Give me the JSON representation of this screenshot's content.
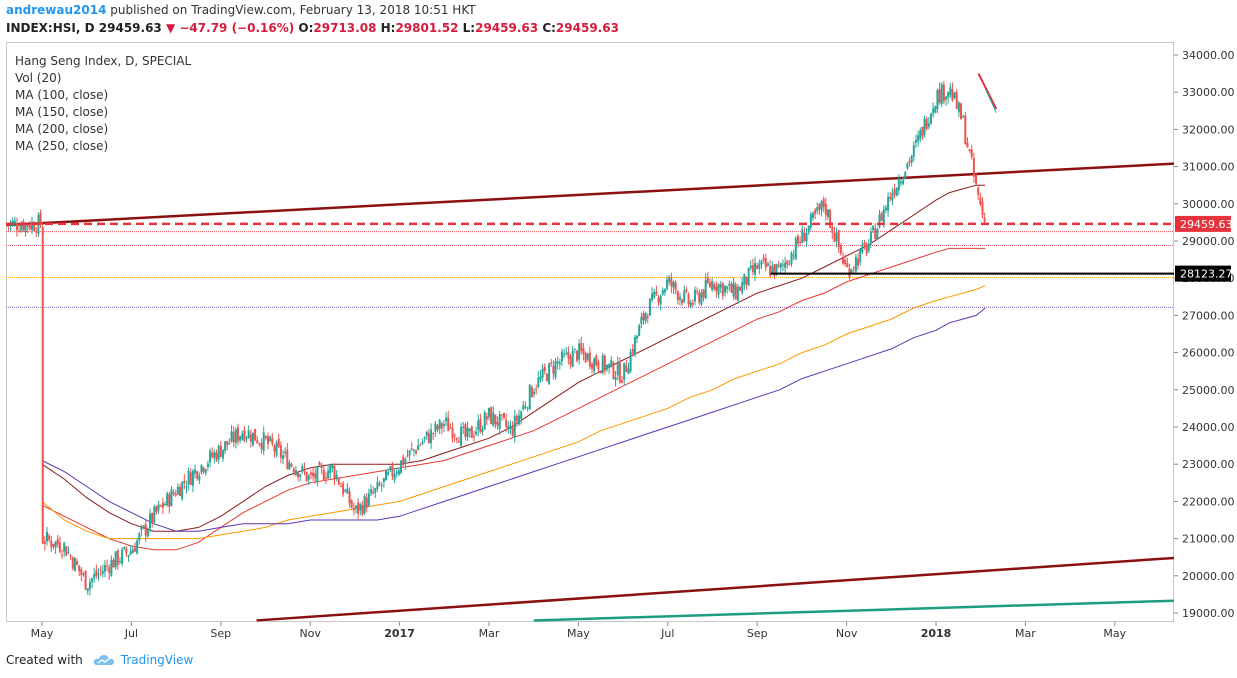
{
  "header": {
    "user": "andrewau2014",
    "published_text": "published on TradingView.com, February 13, 2018 10:51 HKT",
    "symbol": "INDEX:HSI, D",
    "last_price": "29459.63",
    "change": "▼ −47.79 (−0.16%)",
    "open_label": "O:",
    "open": "29713.08",
    "high_label": "H:",
    "high": "29801.52",
    "low_label": "L:",
    "low": "29459.63",
    "close_label": "C:",
    "close": "29459.63"
  },
  "legend": {
    "title": "Hang Seng Index, D, SPECIAL",
    "items": [
      "Vol (20)",
      "MA (100, close)",
      "MA (150, close)",
      "MA (200, close)",
      "MA (250, close)"
    ]
  },
  "footer": {
    "created_with": "Created with",
    "brand": "TradingView"
  },
  "colors": {
    "up": "#26a69a",
    "down": "#ef5350",
    "ma100": "#8b1a1a",
    "ma150": "#e53935",
    "ma200": "#ff9800",
    "ma250": "#5e35b1",
    "trend_channel": "#8b1010",
    "trend_green": "#1e9e80",
    "support": "#000000",
    "price_line": "#e5323b"
  },
  "chart_data": {
    "type": "candlestick",
    "title": "Hang Seng Index, D, SPECIAL",
    "ylim": [
      18800,
      34300
    ],
    "y_ticks": [
      "19000.00",
      "20000.00",
      "21000.00",
      "22000.00",
      "23000.00",
      "24000.00",
      "25000.00",
      "26000.00",
      "27000.00",
      "28000.00",
      "29000.00",
      "30000.00",
      "31000.00",
      "32000.00",
      "33000.00",
      "34000.00"
    ],
    "x_ticks": [
      "May",
      "Jul",
      "Sep",
      "Nov",
      "2017",
      "Mar",
      "May",
      "Jul",
      "Sep",
      "Nov",
      "2018",
      "Mar",
      "May"
    ],
    "x_tick_months": [
      0,
      2,
      4,
      6,
      8,
      10,
      12,
      14,
      16,
      18,
      20,
      22,
      24
    ],
    "price_series_monthly_approx": {
      "months": [
        0,
        0.5,
        1,
        1.5,
        2,
        2.5,
        3,
        3.5,
        4,
        4.5,
        5,
        5.5,
        6,
        6.5,
        7,
        7.5,
        8,
        8.5,
        9,
        9.5,
        10,
        10.5,
        11,
        11.5,
        12,
        12.5,
        13,
        13.5,
        14,
        14.5,
        15,
        15.5,
        16,
        16.5,
        17,
        17.5,
        18,
        18.5,
        19,
        19.5,
        20,
        20.3,
        20.6,
        20.9,
        21.1
      ],
      "close": [
        21000,
        20800,
        19800,
        20300,
        20700,
        21600,
        22300,
        22900,
        23400,
        23900,
        23600,
        23100,
        22600,
        22900,
        21700,
        22300,
        23000,
        23600,
        24100,
        23700,
        24300,
        23900,
        25100,
        25700,
        26000,
        25700,
        25400,
        27100,
        27900,
        27300,
        27900,
        27600,
        28300,
        28200,
        29100,
        30000,
        28200,
        28900,
        30300,
        31400,
        32900,
        33100,
        32200,
        30400,
        29460
      ]
    },
    "moving_averages": [
      {
        "name": "MA (100, close)",
        "values": [
          23000,
          22600,
          22100,
          21700,
          21400,
          21200,
          21200,
          21300,
          21600,
          22000,
          22400,
          22700,
          22900,
          23000,
          23000,
          23000,
          23000,
          23100,
          23300,
          23500,
          23700,
          24000,
          24400,
          24800,
          25200,
          25500,
          25800,
          26100,
          26400,
          26700,
          27000,
          27300,
          27600,
          27800,
          28000,
          28300,
          28600,
          28900,
          29300,
          29700,
          30100,
          30300,
          30400,
          30500,
          30500
        ]
      },
      {
        "name": "MA (150, close)",
        "values": [
          21900,
          21600,
          21300,
          21000,
          20800,
          20700,
          20700,
          20900,
          21300,
          21700,
          22000,
          22300,
          22500,
          22600,
          22700,
          22800,
          22900,
          23000,
          23100,
          23300,
          23500,
          23700,
          23900,
          24200,
          24500,
          24800,
          25100,
          25400,
          25700,
          26000,
          26300,
          26600,
          26900,
          27100,
          27400,
          27600,
          27900,
          28100,
          28300,
          28500,
          28700,
          28800,
          28800,
          28800,
          28800
        ]
      },
      {
        "name": "MA (200, close)",
        "values": [
          22000,
          21500,
          21200,
          21000,
          21000,
          21000,
          21000,
          21000,
          21100,
          21200,
          21300,
          21500,
          21600,
          21700,
          21800,
          21900,
          22000,
          22200,
          22400,
          22600,
          22800,
          23000,
          23200,
          23400,
          23600,
          23900,
          24100,
          24300,
          24500,
          24800,
          25000,
          25300,
          25500,
          25700,
          26000,
          26200,
          26500,
          26700,
          26900,
          27200,
          27400,
          27500,
          27600,
          27700,
          27800
        ]
      },
      {
        "name": "MA (250, close)",
        "values": [
          23100,
          22800,
          22400,
          22000,
          21700,
          21400,
          21200,
          21200,
          21300,
          21400,
          21400,
          21400,
          21500,
          21500,
          21500,
          21500,
          21600,
          21800,
          22000,
          22200,
          22400,
          22600,
          22800,
          23000,
          23200,
          23400,
          23600,
          23800,
          24000,
          24200,
          24400,
          24600,
          24800,
          25000,
          25300,
          25500,
          25700,
          25900,
          26100,
          26400,
          26600,
          26800,
          26900,
          27000,
          27200
        ]
      }
    ],
    "horizontal_lines": [
      {
        "label": "29459.63",
        "value": 29459.63,
        "style": "dashed"
      },
      {
        "label": "28123.27",
        "value": 28123.27,
        "style": "solid"
      }
    ]
  }
}
